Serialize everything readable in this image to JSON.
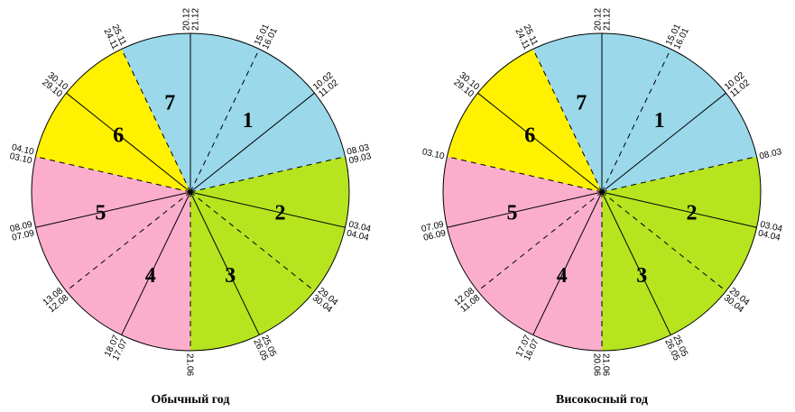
{
  "colors": {
    "blue": "#9AD8EA",
    "green": "#B6E41E",
    "pink": "#FBAECB",
    "yellow": "#FFF100",
    "line": "#000000",
    "background": "#FFFFFF"
  },
  "diagrams": [
    {
      "caption": "Обычный год",
      "segments": [
        {
          "label": "1",
          "color": "#9AD8EA"
        },
        {
          "label": "2",
          "color": "#B6E41E"
        },
        {
          "label": "3",
          "color": "#B6E41E"
        },
        {
          "label": "4",
          "color": "#FBAECB"
        },
        {
          "label": "5",
          "color": "#FBAECB"
        },
        {
          "label": "6",
          "color": "#FFF100"
        },
        {
          "label": "7",
          "color": "#9AD8EA"
        }
      ],
      "boundaries": [
        {
          "labels": [
            "20.12",
            "21.12"
          ],
          "style": "solid"
        },
        {
          "labels": [
            "15.01",
            "16.01"
          ],
          "style": "dashed"
        },
        {
          "labels": [
            "10.02",
            "11.02"
          ],
          "style": "solid"
        },
        {
          "labels": [
            "08.03",
            "09.03"
          ],
          "style": "dashed"
        },
        {
          "labels": [
            "03.04",
            "04.04"
          ],
          "style": "solid"
        },
        {
          "labels": [
            "29.04",
            "30.04"
          ],
          "style": "dashed"
        },
        {
          "labels": [
            "25.05",
            "26.05"
          ],
          "style": "solid"
        },
        {
          "labels": [
            "21.06"
          ],
          "style": "dashed"
        },
        {
          "labels": [
            "18.07",
            "17.07"
          ],
          "style": "solid"
        },
        {
          "labels": [
            "13.08",
            "12.08"
          ],
          "style": "dashed"
        },
        {
          "labels": [
            "08.09",
            "07.09"
          ],
          "style": "solid"
        },
        {
          "labels": [
            "04.10",
            "03.10"
          ],
          "style": "dashed"
        },
        {
          "labels": [
            "30.10",
            "29.10"
          ],
          "style": "solid"
        },
        {
          "labels": [
            "25.11",
            "24.11"
          ],
          "style": "dashed"
        }
      ]
    },
    {
      "caption": "Високосный год",
      "segments": [
        {
          "label": "1",
          "color": "#9AD8EA"
        },
        {
          "label": "2",
          "color": "#B6E41E"
        },
        {
          "label": "3",
          "color": "#B6E41E"
        },
        {
          "label": "4",
          "color": "#FBAECB"
        },
        {
          "label": "5",
          "color": "#FBAECB"
        },
        {
          "label": "6",
          "color": "#FFF100"
        },
        {
          "label": "7",
          "color": "#9AD8EA"
        }
      ],
      "boundaries": [
        {
          "labels": [
            "20.12",
            "21.12"
          ],
          "style": "solid"
        },
        {
          "labels": [
            "15.01",
            "16.01"
          ],
          "style": "dashed"
        },
        {
          "labels": [
            "10.02",
            "11.02"
          ],
          "style": "solid"
        },
        {
          "labels": [
            "08.03"
          ],
          "style": "dashed"
        },
        {
          "labels": [
            "03.04",
            "04.04"
          ],
          "style": "solid"
        },
        {
          "labels": [
            "29.04",
            "30.04"
          ],
          "style": "dashed"
        },
        {
          "labels": [
            "25.05",
            "26.05"
          ],
          "style": "solid"
        },
        {
          "labels": [
            "21.06",
            "20.06"
          ],
          "style": "dashed"
        },
        {
          "labels": [
            "17.07",
            "16.07"
          ],
          "style": "solid"
        },
        {
          "labels": [
            "12.08",
            "11.08"
          ],
          "style": "dashed"
        },
        {
          "labels": [
            "07.09",
            "06.09"
          ],
          "style": "solid"
        },
        {
          "labels": [
            "03.10"
          ],
          "style": "dashed"
        },
        {
          "labels": [
            "30.10",
            "29.10"
          ],
          "style": "solid"
        },
        {
          "labels": [
            "25.11",
            "24.11"
          ],
          "style": "dashed"
        }
      ]
    }
  ]
}
